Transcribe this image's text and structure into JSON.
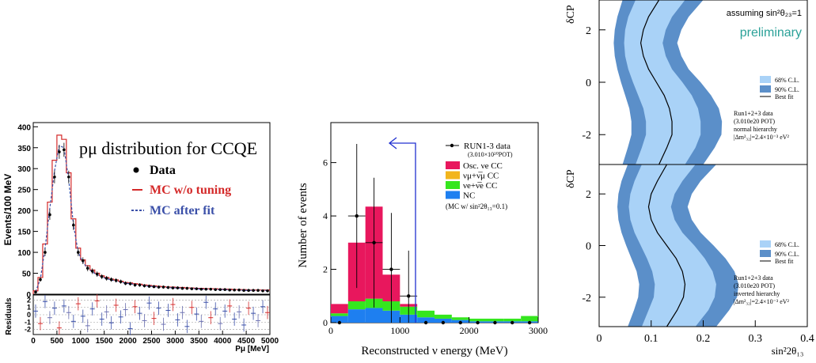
{
  "chart_data": [
    {
      "type": "line",
      "title": "pμ distribution for CCQE",
      "xlabel": "Pμ [MeV]",
      "ylabel": "Events/100 MeV",
      "ylabel_residual": "Residuals",
      "xlim": [
        0,
        5000
      ],
      "ylim": [
        0,
        410
      ],
      "x_ticks": [
        "0",
        "500",
        "1000",
        "1500",
        "2000",
        "2500",
        "3000",
        "3500",
        "4000",
        "4500",
        "5000"
      ],
      "y_ticks": [
        "0",
        "50",
        "100",
        "150",
        "200",
        "250",
        "300",
        "350",
        "400"
      ],
      "res_ticks": [
        "-2",
        "-1",
        "0",
        "1",
        "2"
      ],
      "legend": [
        "Data",
        "MC w/o tuning",
        "MC after fit"
      ],
      "colors": {
        "data": "#000000",
        "mc_notune": "#d42a2a",
        "mc_fit": "#3a4fa8"
      },
      "x": [
        0,
        100,
        200,
        300,
        400,
        500,
        600,
        700,
        800,
        900,
        1000,
        1100,
        1200,
        1300,
        1400,
        1500,
        1600,
        1700,
        1800,
        1900,
        2000,
        2100,
        2200,
        2300,
        2400,
        2500,
        2600,
        2700,
        2800,
        2900,
        3000,
        3100,
        3200,
        3300,
        3400,
        3500,
        3600,
        3700,
        3800,
        3900,
        4000,
        4100,
        4200,
        4300,
        4400,
        4500,
        4600,
        4700,
        4800,
        4900
      ],
      "series": [
        {
          "name": "Data",
          "values": [
            5,
            35,
            100,
            190,
            280,
            340,
            345,
            280,
            165,
            100,
            80,
            62,
            55,
            48,
            42,
            38,
            35,
            33,
            30,
            26,
            25,
            22,
            22,
            20,
            19,
            18,
            17,
            17,
            16,
            15,
            15,
            14,
            14,
            13,
            13,
            12,
            12,
            12,
            11,
            11,
            11,
            10,
            10,
            10,
            9,
            9,
            9,
            9,
            8,
            8
          ]
        },
        {
          "name": "MC w/o tuning",
          "values": [
            8,
            40,
            120,
            220,
            320,
            380,
            370,
            290,
            180,
            110,
            82,
            68,
            58,
            50,
            44,
            40,
            36,
            34,
            31,
            28,
            27,
            25,
            24,
            22,
            21,
            20,
            19,
            18,
            17,
            17,
            16,
            16,
            15,
            15,
            14,
            14,
            13,
            13,
            13,
            12,
            12,
            12,
            11,
            11,
            11,
            10,
            10,
            10,
            10,
            10
          ]
        },
        {
          "name": "MC after fit",
          "values": [
            6,
            36,
            110,
            205,
            295,
            355,
            350,
            272,
            165,
            100,
            76,
            62,
            53,
            46,
            41,
            37,
            34,
            31,
            29,
            26,
            25,
            23,
            22,
            20,
            19,
            18,
            17,
            16,
            16,
            15,
            15,
            14,
            14,
            13,
            13,
            12,
            12,
            12,
            11,
            11,
            11,
            10,
            10,
            10,
            9,
            9,
            9,
            9,
            9,
            9
          ]
        }
      ],
      "residuals": [
        0.5,
        -1.2,
        1.8,
        -0.4,
        0.9,
        -1.8,
        1.2,
        0.3,
        -0.9,
        1.5,
        -0.2,
        -1.5,
        0.8,
        1.9,
        -0.6,
        0.4,
        -1.1,
        1.3,
        -0.3,
        0.7,
        -1.9,
        1.1,
        0.2,
        -0.8,
        1.6,
        -0.5,
        0.9,
        -1.3,
        0.6,
        1.4,
        -0.7,
        0.3,
        -1.6,
        1.0,
        0.1,
        -0.9,
        1.7,
        -0.4,
        0.8,
        -1.2,
        0.5,
        1.2,
        -0.6,
        0.4,
        -1.4,
        0.9,
        0.2,
        -0.8,
        1.1,
        0.3
      ]
    },
    {
      "type": "bar",
      "xlabel": "Reconstructed ν energy (MeV)",
      "ylabel": "Number of events",
      "xlim": [
        0,
        3000
      ],
      "ylim": [
        0,
        7.5
      ],
      "x_ticks": [
        "0",
        "1000",
        "2000",
        "3000"
      ],
      "y_ticks": [
        "0",
        "2",
        "4",
        "6"
      ],
      "bin_edges": [
        0,
        250,
        500,
        750,
        1000,
        1250,
        1500,
        1750,
        2000,
        2250,
        2500,
        2750,
        3000
      ],
      "stack": [
        {
          "name": "Osc. νe CC",
          "color": "#e8175d",
          "values": [
            0.35,
            2.2,
            3.45,
            1.0,
            0.1,
            0,
            0,
            0,
            0,
            0,
            0,
            0
          ]
        },
        {
          "name": "νμ+ν̅μ CC",
          "color": "#f2b51c",
          "values": [
            0,
            0,
            0,
            0,
            0,
            0,
            0,
            0,
            0,
            0,
            0,
            0
          ]
        },
        {
          "name": "νe+ν̅e CC",
          "color": "#35e61e",
          "values": [
            0.1,
            0.3,
            0.35,
            0.35,
            0.3,
            0.25,
            0.15,
            0.1,
            0.1,
            0.1,
            0.1,
            0.2
          ]
        },
        {
          "name": "NC",
          "color": "#1e7ff0",
          "values": [
            0.25,
            0.5,
            0.55,
            0.45,
            0.3,
            0.2,
            0.15,
            0.1,
            0.05,
            0.05,
            0.05,
            0.05
          ]
        }
      ],
      "data_points": {
        "x": [
          125,
          375,
          625,
          875,
          1125,
          1375,
          1625,
          1875,
          2125,
          2375,
          2625,
          2875
        ],
        "y": [
          0,
          4,
          3,
          2,
          1,
          0,
          0,
          0,
          0,
          0,
          0,
          0
        ]
      },
      "legend": [
        "RUN1-3 data",
        "(3.010×10²⁰POT)",
        "Osc. νe CC",
        "νμ+ν̅μ CC",
        "νe+ν̅e CC",
        "NC",
        "(MC w/ sin²2θ₁₃=0.1)"
      ],
      "cut_arrow_x": 1250
    },
    {
      "type": "area",
      "xlabel": "sin²2θ₁₃",
      "ylabel": "δCP",
      "xlim": [
        0,
        0.4
      ],
      "ylim": [
        -3.14,
        3.14
      ],
      "x_ticks": [
        "0",
        "0.1",
        "0.2",
        "0.3",
        "0.4"
      ],
      "y_ticks": [
        "2",
        "0",
        "-2"
      ],
      "annotation": "assuming sin²θ₂₃=1",
      "watermark": "preliminary",
      "legend": [
        "68% C.L.",
        "90% C.L.",
        "Best fit"
      ],
      "colors": {
        "cl68": "#a9d2f7",
        "cl90": "#5b8fc9",
        "best": "#000000",
        "watermark": "#2aa198"
      },
      "panels": [
        {
          "label": "normal hierarchy",
          "notes": [
            "Run1+2+3 data",
            "(3.010e20 POT)",
            "normal hierarchy",
            "|Δm²₃₂|=2.4×10⁻³ eV²"
          ],
          "delta": [
            -3.14,
            -2.5,
            -2,
            -1.5,
            -1,
            -0.5,
            0,
            0.5,
            1,
            1.5,
            2,
            2.5,
            3.14
          ],
          "best": [
            0.115,
            0.13,
            0.14,
            0.14,
            0.135,
            0.125,
            0.11,
            0.095,
            0.085,
            0.08,
            0.085,
            0.095,
            0.115
          ],
          "cl68_lo": [
            0.07,
            0.082,
            0.09,
            0.09,
            0.085,
            0.075,
            0.065,
            0.056,
            0.05,
            0.048,
            0.05,
            0.056,
            0.07
          ],
          "cl68_hi": [
            0.165,
            0.185,
            0.195,
            0.195,
            0.19,
            0.178,
            0.16,
            0.14,
            0.128,
            0.122,
            0.128,
            0.14,
            0.165
          ],
          "cl90_lo": [
            0.045,
            0.055,
            0.062,
            0.062,
            0.058,
            0.05,
            0.042,
            0.035,
            0.03,
            0.028,
            0.03,
            0.035,
            0.045
          ],
          "cl90_hi": [
            0.2,
            0.222,
            0.235,
            0.236,
            0.23,
            0.215,
            0.195,
            0.172,
            0.158,
            0.15,
            0.158,
            0.172,
            0.2
          ]
        },
        {
          "label": "inverted hierarchy",
          "notes": [
            "Run1+2+3 data",
            "(3.010e20 POT)",
            "inverted hierarchy",
            "|Δm²₃₂|=2.4×10⁻³ eV²"
          ],
          "delta": [
            -3.14,
            -2.5,
            -2,
            -1.5,
            -1,
            -0.5,
            0,
            0.5,
            1,
            1.5,
            2,
            2.5,
            3.14
          ],
          "best": [
            0.13,
            0.15,
            0.162,
            0.165,
            0.16,
            0.148,
            0.13,
            0.112,
            0.1,
            0.095,
            0.1,
            0.112,
            0.13
          ],
          "cl68_lo": [
            0.082,
            0.095,
            0.105,
            0.107,
            0.102,
            0.092,
            0.08,
            0.068,
            0.06,
            0.057,
            0.06,
            0.068,
            0.082
          ],
          "cl68_hi": [
            0.185,
            0.21,
            0.222,
            0.225,
            0.218,
            0.203,
            0.183,
            0.16,
            0.145,
            0.138,
            0.145,
            0.16,
            0.185
          ],
          "cl90_lo": [
            0.055,
            0.067,
            0.075,
            0.077,
            0.072,
            0.062,
            0.052,
            0.043,
            0.037,
            0.035,
            0.037,
            0.043,
            0.055
          ],
          "cl90_hi": [
            0.225,
            0.25,
            0.265,
            0.268,
            0.26,
            0.243,
            0.22,
            0.195,
            0.178,
            0.17,
            0.178,
            0.195,
            0.225
          ]
        }
      ]
    }
  ]
}
